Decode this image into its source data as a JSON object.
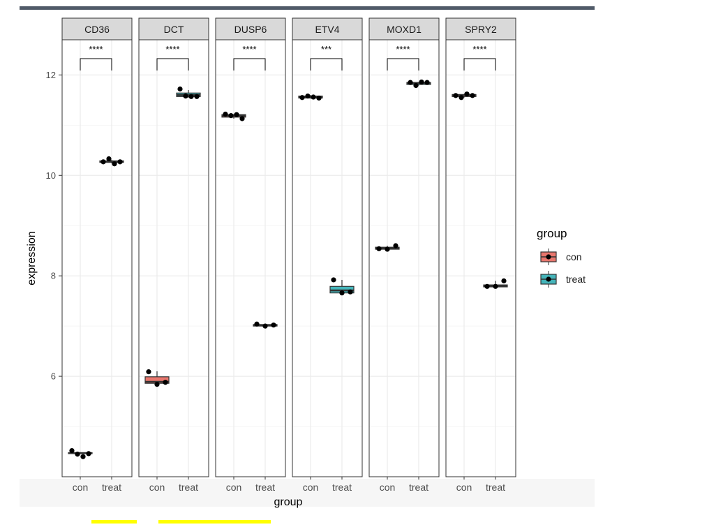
{
  "chart_data": {
    "type": "boxplot",
    "facet_by": "gene",
    "ylabel": "expression",
    "xlabel": "group",
    "ylim": [
      4.0,
      12.7
    ],
    "yticks": [
      6,
      8,
      10,
      12
    ],
    "categories": [
      "con",
      "treat"
    ],
    "legend": {
      "title": "group",
      "position": "right",
      "items": [
        {
          "label": "con",
          "color": "#E8766D"
        },
        {
          "label": "treat",
          "color": "#45B5BA"
        }
      ]
    },
    "grid": true,
    "facets": [
      {
        "name": "CD36",
        "signif": "****",
        "con": {
          "box": [
            4.45,
            4.46,
            4.47,
            4.48,
            4.49
          ],
          "points": [
            4.52,
            4.45,
            4.4,
            4.46
          ]
        },
        "treat": {
          "box": [
            10.24,
            10.26,
            10.27,
            10.29,
            10.31
          ],
          "points": [
            10.27,
            10.33,
            10.23,
            10.27
          ]
        }
      },
      {
        "name": "DCT",
        "signif": "****",
        "con": {
          "box": [
            5.84,
            5.86,
            5.89,
            5.99,
            6.1
          ],
          "points": [
            6.09,
            5.84,
            5.88
          ]
        },
        "treat": {
          "box": [
            11.55,
            11.57,
            11.6,
            11.64,
            11.7
          ],
          "points": [
            11.72,
            11.58,
            11.57,
            11.57
          ]
        }
      },
      {
        "name": "DUSP6",
        "signif": "****",
        "con": {
          "box": [
            11.13,
            11.16,
            11.19,
            11.21,
            11.22
          ],
          "points": [
            11.22,
            11.19,
            11.21,
            11.13
          ]
        },
        "treat": {
          "box": [
            6.99,
            7.0,
            7.02,
            7.03,
            7.04
          ],
          "points": [
            7.04,
            7.0,
            7.02
          ]
        }
      },
      {
        "name": "ETV4",
        "signif": "***",
        "con": {
          "box": [
            11.53,
            11.54,
            11.56,
            11.58,
            11.6
          ],
          "points": [
            11.55,
            11.58,
            11.56,
            11.54
          ]
        },
        "treat": {
          "box": [
            7.66,
            7.66,
            7.71,
            7.79,
            7.92
          ],
          "points": [
            7.92,
            7.66,
            7.68
          ]
        }
      },
      {
        "name": "MOXD1",
        "signif": "****",
        "con": {
          "box": [
            8.52,
            8.53,
            8.55,
            8.57,
            8.6
          ],
          "points": [
            8.54,
            8.53,
            8.6
          ]
        },
        "treat": {
          "box": [
            11.79,
            11.81,
            11.84,
            11.85,
            11.86
          ],
          "points": [
            11.85,
            11.79,
            11.86,
            11.85
          ]
        }
      },
      {
        "name": "SPRY2",
        "signif": "****",
        "con": {
          "box": [
            11.55,
            11.57,
            11.6,
            11.61,
            11.62
          ],
          "points": [
            11.59,
            11.55,
            11.62,
            11.59
          ]
        },
        "treat": {
          "box": [
            7.78,
            7.78,
            7.8,
            7.82,
            7.9
          ],
          "points": [
            7.79,
            7.79,
            7.9
          ]
        }
      }
    ]
  },
  "colors": {
    "top_bar": "#505a68",
    "strip_fill": "#d9d9d9",
    "panel_border": "#333333",
    "grid_major": "#ebebeb",
    "grid_minor": "#f5f5f5",
    "highlight": "#ffff00"
  }
}
